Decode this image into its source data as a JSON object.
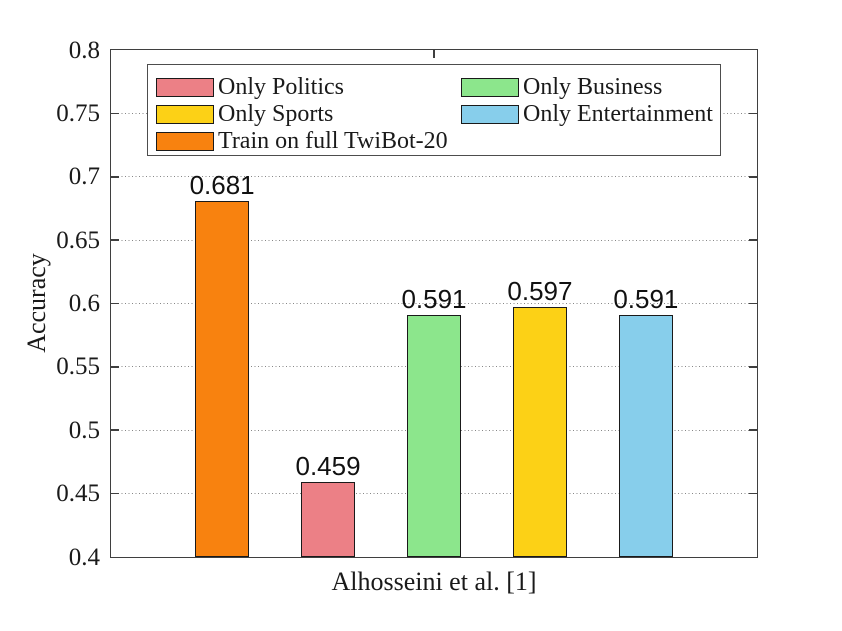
{
  "figure": {
    "background": "#ffffff",
    "axis_color": "#3f3f3f",
    "grid_color": "#878787",
    "text_color": "#1a1a1a"
  },
  "chart_data": {
    "type": "bar",
    "title": "",
    "xlabel": "Alhosseini et al. [1]",
    "ylabel": "Accuracy",
    "ylim": [
      0.4,
      0.8
    ],
    "yticks": [
      "0.4",
      "0.45",
      "0.5",
      "0.55",
      "0.6",
      "0.65",
      "0.7",
      "0.75",
      "0.8"
    ],
    "grid": "horizontal-dotted",
    "legend_position": "top-left-inside",
    "categories": [
      "Alhosseini et al. [1]"
    ],
    "series": [
      {
        "name": "Train on full TwiBot-20",
        "values": [
          0.681
        ],
        "label": "0.681",
        "color": "#F8820F"
      },
      {
        "name": "Only Politics",
        "values": [
          0.459
        ],
        "label": "0.459",
        "color": "#EC8086"
      },
      {
        "name": "Only Business",
        "values": [
          0.591
        ],
        "label": "0.591",
        "color": "#8CE68C"
      },
      {
        "name": "Only Sports",
        "values": [
          0.597
        ],
        "label": "0.597",
        "color": "#FCD116"
      },
      {
        "name": "Only Entertainment",
        "values": [
          0.591
        ],
        "label": "0.591",
        "color": "#87CEEB"
      }
    ],
    "legend": {
      "columns": [
        [
          {
            "label": "Only Politics",
            "color": "#EC8086"
          },
          {
            "label": "Only Sports",
            "color": "#FCD116"
          },
          {
            "label": "Train on full TwiBot-20",
            "color": "#F8820F"
          }
        ],
        [
          {
            "label": "Only Business",
            "color": "#8CE68C"
          },
          {
            "label": "Only Entertainment",
            "color": "#87CEEB"
          }
        ]
      ]
    }
  }
}
